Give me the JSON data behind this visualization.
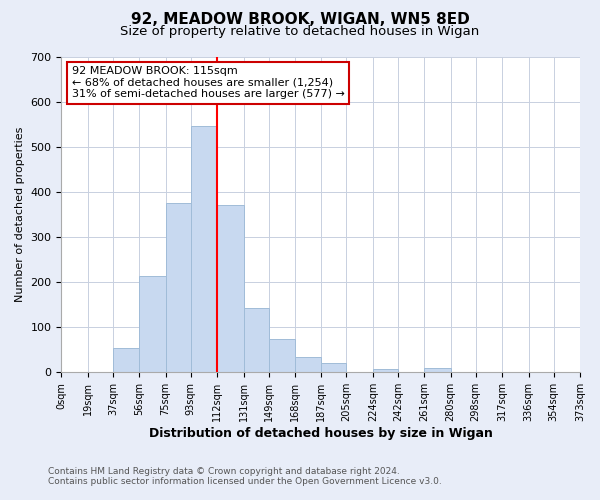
{
  "title": "92, MEADOW BROOK, WIGAN, WN5 8ED",
  "subtitle": "Size of property relative to detached houses in Wigan",
  "xlabel": "Distribution of detached houses by size in Wigan",
  "ylabel": "Number of detached properties",
  "bar_color": "#c8d9f0",
  "bar_edge_color": "#a0bcd8",
  "vline_x": 112,
  "vline_color": "red",
  "annotation_title": "92 MEADOW BROOK: 115sqm",
  "annotation_line1": "← 68% of detached houses are smaller (1,254)",
  "annotation_line2": "31% of semi-detached houses are larger (577) →",
  "annotation_box_color": "white",
  "annotation_box_edge": "#cc0000",
  "bin_edges": [
    0,
    19,
    37,
    56,
    75,
    93,
    112,
    131,
    149,
    168,
    187,
    205,
    224,
    242,
    261,
    280,
    298,
    317,
    336,
    354,
    373
  ],
  "bin_counts": [
    0,
    0,
    53,
    213,
    375,
    545,
    370,
    142,
    75,
    33,
    20,
    0,
    8,
    0,
    9,
    0,
    0,
    0,
    0,
    0
  ],
  "tick_labels": [
    "0sqm",
    "19sqm",
    "37sqm",
    "56sqm",
    "75sqm",
    "93sqm",
    "112sqm",
    "131sqm",
    "149sqm",
    "168sqm",
    "187sqm",
    "205sqm",
    "224sqm",
    "242sqm",
    "261sqm",
    "280sqm",
    "298sqm",
    "317sqm",
    "336sqm",
    "354sqm",
    "373sqm"
  ],
  "ylim": [
    0,
    700
  ],
  "yticks": [
    0,
    100,
    200,
    300,
    400,
    500,
    600,
    700
  ],
  "footer1": "Contains HM Land Registry data © Crown copyright and database right 2024.",
  "footer2": "Contains public sector information licensed under the Open Government Licence v3.0.",
  "background_color": "#e8edf8",
  "plot_background": "#ffffff",
  "grid_color": "#c8d0e0",
  "title_fontsize": 11,
  "subtitle_fontsize": 9.5,
  "xlabel_fontsize": 9,
  "ylabel_fontsize": 8,
  "footer_fontsize": 6.5,
  "tick_fontsize": 7,
  "ytick_fontsize": 8
}
